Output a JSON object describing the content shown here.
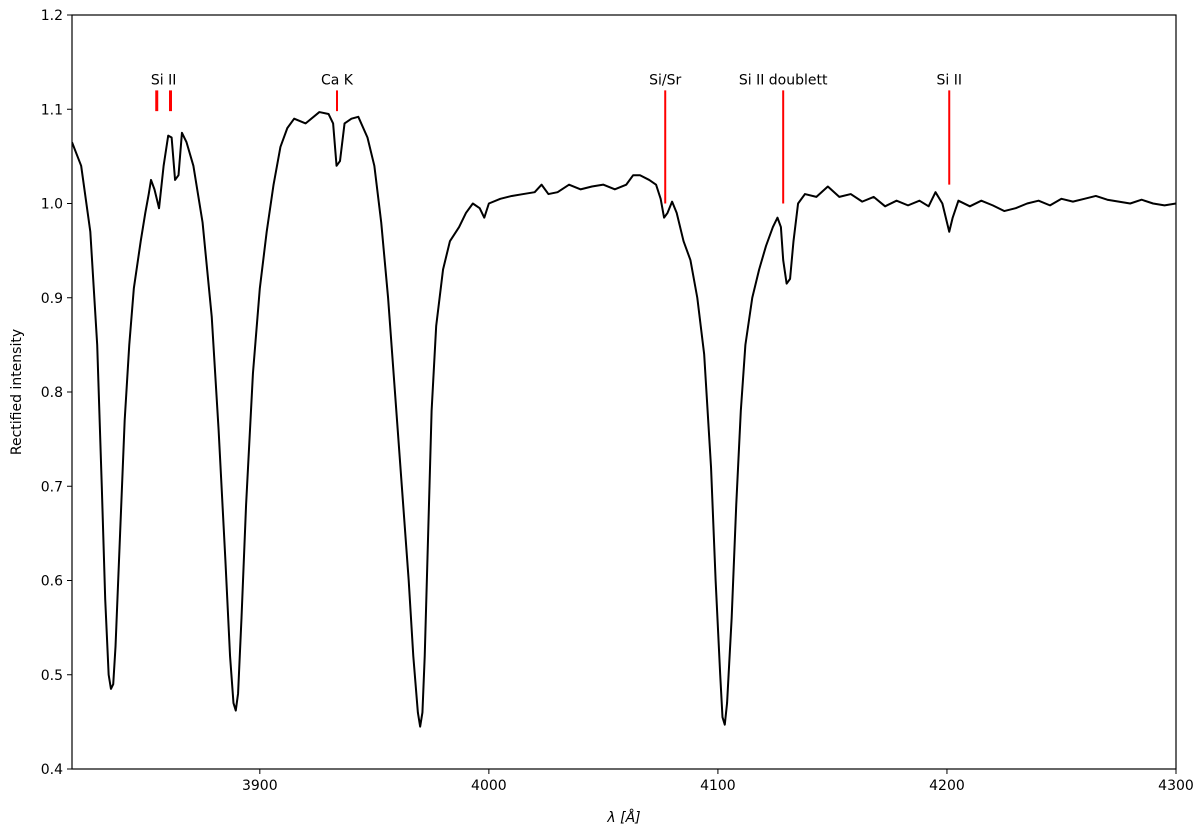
{
  "chart_data": {
    "type": "line",
    "xlabel": "λ [Å]",
    "ylabel": "Rectified intensity",
    "xlim": [
      3818,
      4300
    ],
    "ylim": [
      0.4,
      1.2
    ],
    "x_ticks": [
      3900,
      4000,
      4100,
      4200,
      4300
    ],
    "x_tick_labels": [
      "3900",
      "4000",
      "4100",
      "4200",
      "4300"
    ],
    "y_ticks": [
      0.4,
      0.5,
      0.6,
      0.7,
      0.8,
      0.9,
      1.0,
      1.1,
      1.2
    ],
    "y_tick_labels": [
      "0.4",
      "0.5",
      "0.6",
      "0.7",
      "0.8",
      "0.9",
      "1.0",
      "1.1",
      "1.2"
    ],
    "grid": false,
    "series": [
      {
        "color": "#000000",
        "points": [
          [
            3818,
            1.065
          ],
          [
            3822,
            1.04
          ],
          [
            3826,
            0.97
          ],
          [
            3829,
            0.85
          ],
          [
            3831,
            0.7
          ],
          [
            3832.5,
            0.58
          ],
          [
            3834,
            0.5
          ],
          [
            3835,
            0.485
          ],
          [
            3836,
            0.49
          ],
          [
            3837,
            0.53
          ],
          [
            3839,
            0.65
          ],
          [
            3841,
            0.77
          ],
          [
            3843,
            0.85
          ],
          [
            3845,
            0.91
          ],
          [
            3848,
            0.96
          ],
          [
            3850,
            0.99
          ],
          [
            3851.5,
            1.01
          ],
          [
            3852.5,
            1.025
          ],
          [
            3854,
            1.015
          ],
          [
            3855,
            1.005
          ],
          [
            3856,
            0.995
          ],
          [
            3858,
            1.04
          ],
          [
            3860,
            1.072
          ],
          [
            3861.5,
            1.07
          ],
          [
            3863,
            1.025
          ],
          [
            3864.5,
            1.03
          ],
          [
            3866,
            1.075
          ],
          [
            3868,
            1.065
          ],
          [
            3871,
            1.04
          ],
          [
            3875,
            0.98
          ],
          [
            3879,
            0.88
          ],
          [
            3882,
            0.76
          ],
          [
            3885,
            0.62
          ],
          [
            3887,
            0.52
          ],
          [
            3888.5,
            0.47
          ],
          [
            3889.5,
            0.462
          ],
          [
            3890.5,
            0.48
          ],
          [
            3892,
            0.56
          ],
          [
            3894,
            0.68
          ],
          [
            3897,
            0.82
          ],
          [
            3900,
            0.91
          ],
          [
            3903,
            0.97
          ],
          [
            3906,
            1.02
          ],
          [
            3909,
            1.06
          ],
          [
            3912,
            1.08
          ],
          [
            3915,
            1.09
          ],
          [
            3920,
            1.085
          ],
          [
            3926,
            1.097
          ],
          [
            3930,
            1.095
          ],
          [
            3932,
            1.085
          ],
          [
            3933.5,
            1.04
          ],
          [
            3935,
            1.045
          ],
          [
            3937,
            1.085
          ],
          [
            3940,
            1.09
          ],
          [
            3943,
            1.092
          ],
          [
            3947,
            1.07
          ],
          [
            3950,
            1.04
          ],
          [
            3953,
            0.98
          ],
          [
            3956,
            0.9
          ],
          [
            3959,
            0.8
          ],
          [
            3962,
            0.7
          ],
          [
            3965,
            0.6
          ],
          [
            3967,
            0.52
          ],
          [
            3969,
            0.46
          ],
          [
            3970,
            0.445
          ],
          [
            3971,
            0.46
          ],
          [
            3972,
            0.52
          ],
          [
            3973.5,
            0.65
          ],
          [
            3975,
            0.78
          ],
          [
            3977,
            0.87
          ],
          [
            3980,
            0.93
          ],
          [
            3983,
            0.96
          ],
          [
            3987,
            0.975
          ],
          [
            3990,
            0.99
          ],
          [
            3993,
            1.0
          ],
          [
            3996,
            0.995
          ],
          [
            3998,
            0.985
          ],
          [
            4000,
            1.0
          ],
          [
            4005,
            1.005
          ],
          [
            4010,
            1.008
          ],
          [
            4015,
            1.01
          ],
          [
            4020,
            1.012
          ],
          [
            4023,
            1.02
          ],
          [
            4026,
            1.01
          ],
          [
            4030,
            1.012
          ],
          [
            4035,
            1.02
          ],
          [
            4040,
            1.015
          ],
          [
            4045,
            1.018
          ],
          [
            4050,
            1.02
          ],
          [
            4055,
            1.015
          ],
          [
            4060,
            1.02
          ],
          [
            4063,
            1.03
          ],
          [
            4066,
            1.03
          ],
          [
            4070,
            1.025
          ],
          [
            4073,
            1.02
          ],
          [
            4075,
            1.005
          ],
          [
            4076.5,
            0.985
          ],
          [
            4078,
            0.99
          ],
          [
            4080,
            1.002
          ],
          [
            4082,
            0.99
          ],
          [
            4085,
            0.96
          ],
          [
            4088,
            0.94
          ],
          [
            4091,
            0.9
          ],
          [
            4094,
            0.84
          ],
          [
            4097,
            0.72
          ],
          [
            4099,
            0.6
          ],
          [
            4101,
            0.5
          ],
          [
            4102,
            0.455
          ],
          [
            4103,
            0.447
          ],
          [
            4104,
            0.47
          ],
          [
            4106,
            0.56
          ],
          [
            4108,
            0.68
          ],
          [
            4110,
            0.78
          ],
          [
            4112,
            0.85
          ],
          [
            4115,
            0.9
          ],
          [
            4118,
            0.93
          ],
          [
            4121,
            0.955
          ],
          [
            4124,
            0.975
          ],
          [
            4126,
            0.985
          ],
          [
            4127.5,
            0.975
          ],
          [
            4128.5,
            0.94
          ],
          [
            4130,
            0.915
          ],
          [
            4131.5,
            0.92
          ],
          [
            4133,
            0.96
          ],
          [
            4135,
            1.0
          ],
          [
            4138,
            1.01
          ],
          [
            4143,
            1.007
          ],
          [
            4148,
            1.018
          ],
          [
            4153,
            1.007
          ],
          [
            4158,
            1.01
          ],
          [
            4163,
            1.002
          ],
          [
            4168,
            1.007
          ],
          [
            4173,
            0.997
          ],
          [
            4178,
            1.003
          ],
          [
            4183,
            0.998
          ],
          [
            4188,
            1.003
          ],
          [
            4192,
            0.997
          ],
          [
            4195,
            1.012
          ],
          [
            4198,
            1.0
          ],
          [
            4200,
            0.98
          ],
          [
            4201,
            0.97
          ],
          [
            4202.5,
            0.985
          ],
          [
            4205,
            1.003
          ],
          [
            4210,
            0.997
          ],
          [
            4215,
            1.003
          ],
          [
            4220,
            0.998
          ],
          [
            4225,
            0.992
          ],
          [
            4230,
            0.995
          ],
          [
            4235,
            1.0
          ],
          [
            4240,
            1.003
          ],
          [
            4245,
            0.998
          ],
          [
            4250,
            1.005
          ],
          [
            4255,
            1.002
          ],
          [
            4260,
            1.005
          ],
          [
            4265,
            1.008
          ],
          [
            4270,
            1.004
          ],
          [
            4275,
            1.002
          ],
          [
            4280,
            1.0
          ],
          [
            4285,
            1.004
          ],
          [
            4290,
            1.0
          ],
          [
            4295,
            0.998
          ],
          [
            4300,
            1.0
          ]
        ]
      }
    ],
    "line_marks": [
      {
        "label": "Si II",
        "color": "#ff0000",
        "lines": [
          {
            "x": 3855,
            "y_top": 1.12,
            "y_bottom": 1.098
          },
          {
            "x": 3861,
            "y_top": 1.12,
            "y_bottom": 1.098
          }
        ]
      },
      {
        "label": "Ca K",
        "color": "#ff0000",
        "lines": [
          {
            "x": 3933.7,
            "y_top": 1.12,
            "y_bottom": 1.098
          }
        ]
      },
      {
        "label": "Si/Sr",
        "color": "#ff0000",
        "lines": [
          {
            "x": 4077,
            "y_top": 1.12,
            "y_bottom": 1.0
          }
        ]
      },
      {
        "label": "Si II doublett",
        "color": "#ff0000",
        "lines": [
          {
            "x": 4128.5,
            "y_top": 1.12,
            "y_bottom": 1.0
          }
        ]
      },
      {
        "label": "Si II",
        "color": "#ff0000",
        "lines": [
          {
            "x": 4201,
            "y_top": 1.12,
            "y_bottom": 1.02
          }
        ]
      }
    ]
  }
}
